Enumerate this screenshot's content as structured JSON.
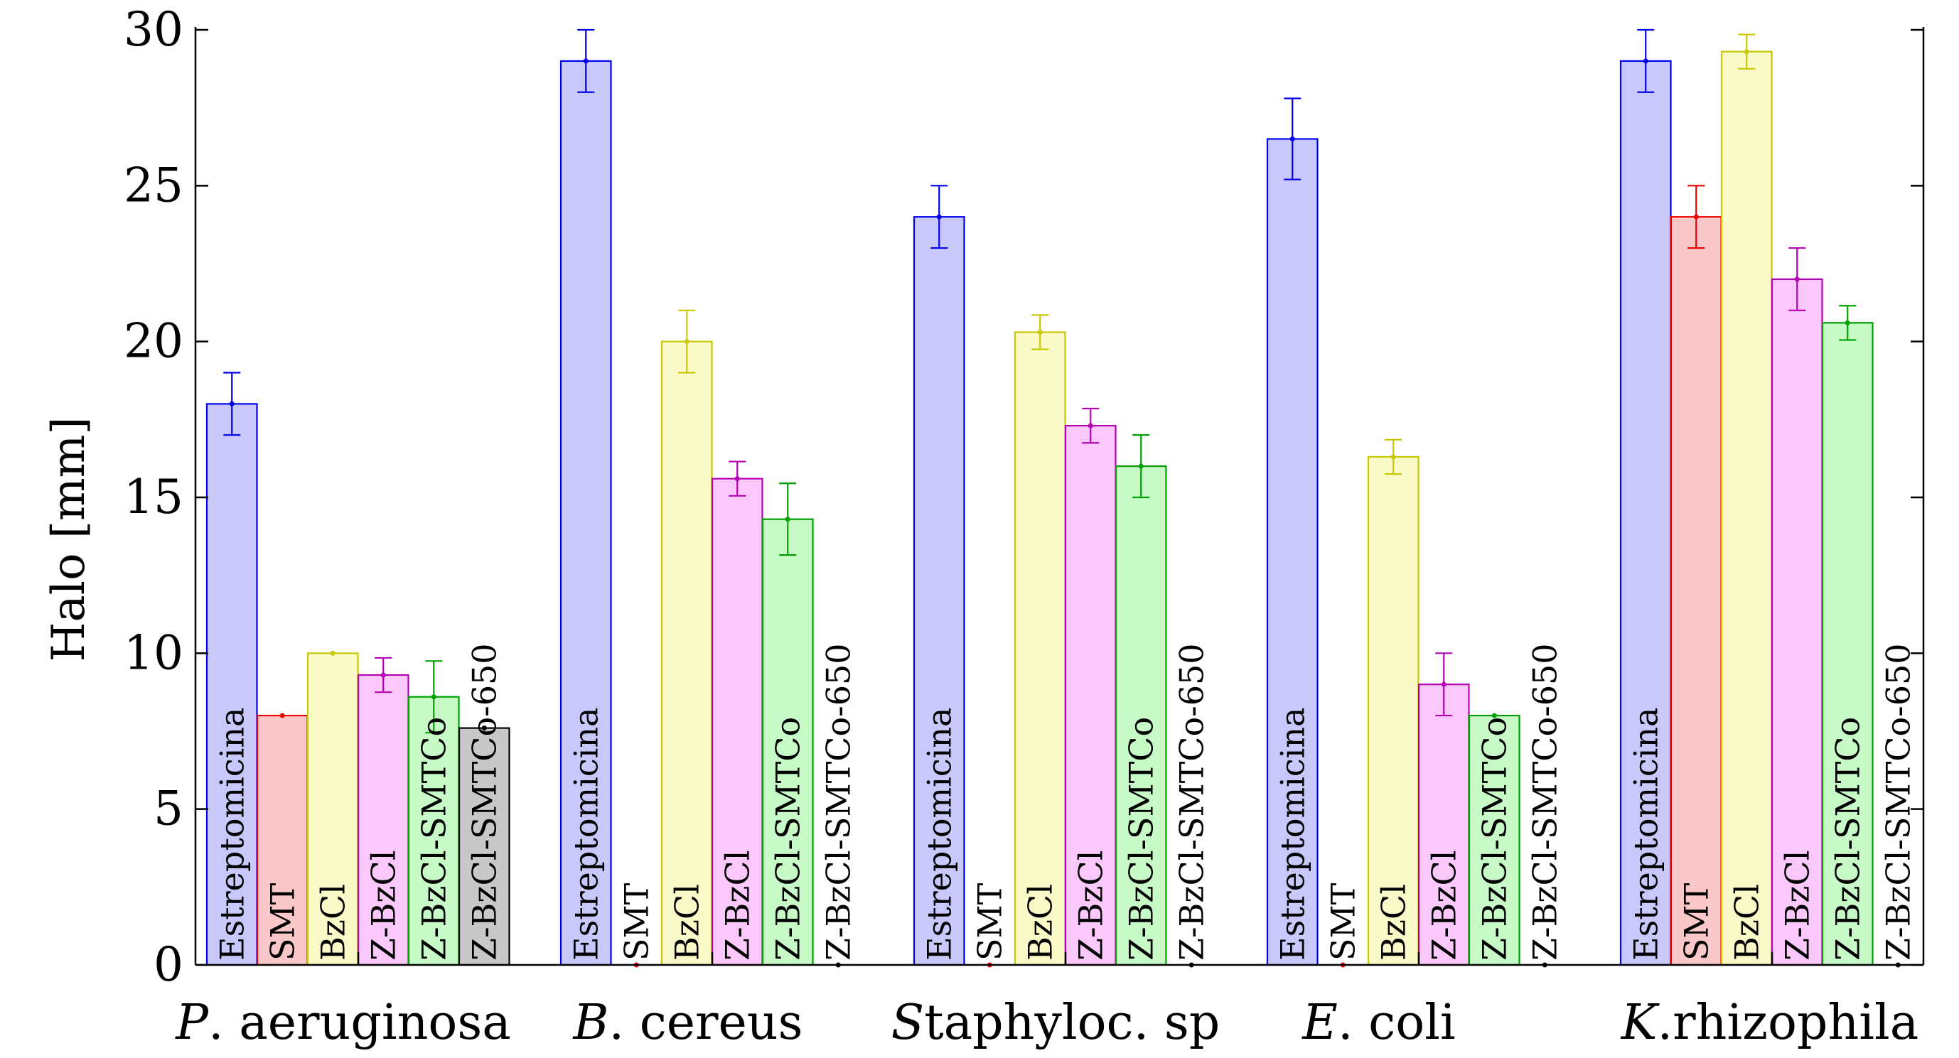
{
  "chart_data": {
    "type": "bar",
    "ylabel": "Halo [mm]",
    "xlabel": "",
    "ylim": [
      0,
      30
    ],
    "yticks": [
      "0",
      "5",
      "10",
      "15",
      "20",
      "25",
      "30"
    ],
    "grid": false,
    "legend": "none",
    "categories": [
      {
        "italic": "P",
        "rest": ". aeruginosa"
      },
      {
        "italic": "B",
        "rest": ". cereus"
      },
      {
        "italic": "S",
        "rest": "taphyloc. sp"
      },
      {
        "italic": "E",
        "rest": ". coli"
      },
      {
        "italic": "K",
        "rest": ".rhizophila"
      }
    ],
    "series": [
      {
        "label": "Estreptomicina",
        "stroke": "#0000ee",
        "fill": "#c8c8fa",
        "values": [
          18,
          29,
          24,
          26.5,
          29
        ],
        "errors": [
          1.0,
          1.0,
          1.0,
          1.3,
          1.0
        ]
      },
      {
        "label": "SMT",
        "stroke": "#ee0000",
        "fill": "#fac8c8",
        "values": [
          8,
          0,
          0,
          0,
          24
        ],
        "errors": [
          0,
          0,
          0,
          0,
          1.0
        ]
      },
      {
        "label": "BzCl",
        "stroke": "#c8c800",
        "fill": "#fafac8",
        "values": [
          10,
          20,
          20.3,
          16.3,
          29.3
        ],
        "errors": [
          0,
          1.0,
          0.55,
          0.55,
          0.55
        ]
      },
      {
        "label": "Z-BzCl",
        "stroke": "#b400b4",
        "fill": "#fac8fa",
        "values": [
          9.3,
          15.6,
          17.3,
          9,
          22
        ],
        "errors": [
          0.55,
          0.55,
          0.55,
          1.0,
          1.0
        ]
      },
      {
        "label": "Z-BzCl-SMTCo",
        "stroke": "#00a000",
        "fill": "#c8fac8",
        "values": [
          8.6,
          14.3,
          16,
          8,
          20.6
        ],
        "errors": [
          1.15,
          1.15,
          1.0,
          0,
          0.55
        ]
      },
      {
        "label": "Z-BzCl-SMTCo-650",
        "stroke": "#000000",
        "fill": "#c8c8c8",
        "values": [
          7.6,
          0,
          0,
          0,
          0
        ],
        "errors": [
          0,
          0,
          0,
          0,
          0
        ]
      }
    ]
  }
}
